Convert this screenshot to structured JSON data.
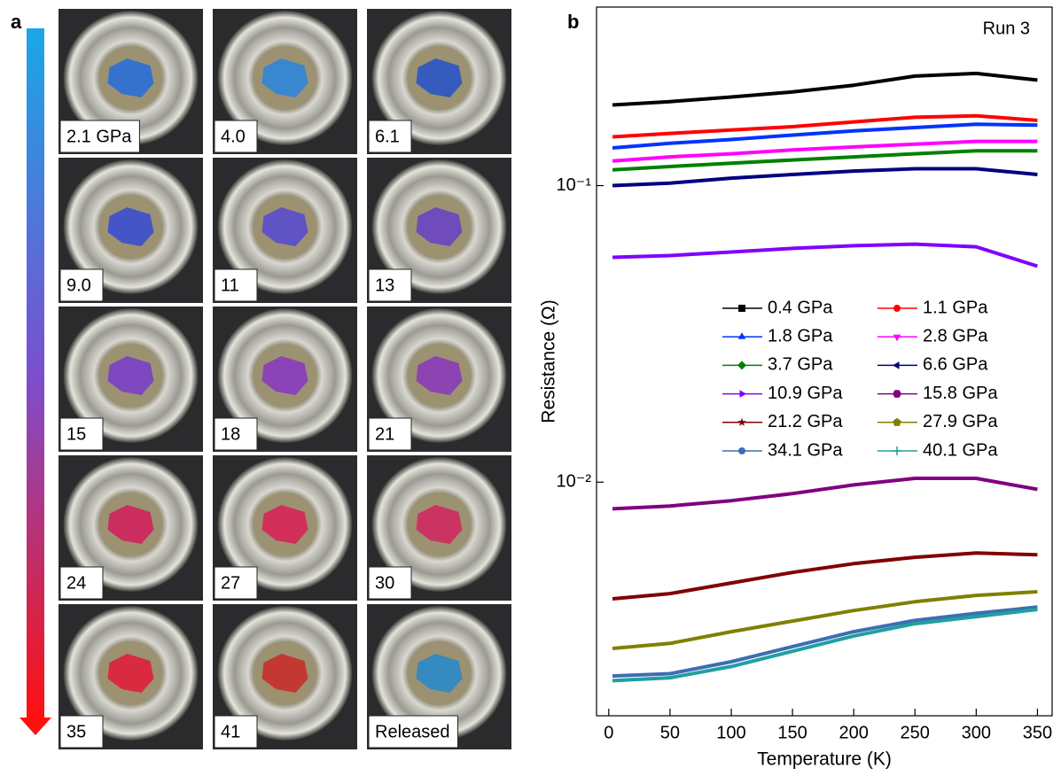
{
  "panel_a": {
    "label": "a",
    "images": [
      {
        "label": "2.1 GPa"
      },
      {
        "label": "4.0"
      },
      {
        "label": "6.1"
      },
      {
        "label": "9.0"
      },
      {
        "label": "11"
      },
      {
        "label": "13"
      },
      {
        "label": "15"
      },
      {
        "label": "18"
      },
      {
        "label": "21"
      },
      {
        "label": "24"
      },
      {
        "label": "27"
      },
      {
        "label": "30"
      },
      {
        "label": "35"
      },
      {
        "label": "41"
      },
      {
        "label": "Released"
      }
    ]
  },
  "chart_data": {
    "type": "line",
    "panel_label": "b",
    "annotation": "Run 3",
    "x_label": "Temperature (K)",
    "y_label": "Resistance (Ω)",
    "log_y": true,
    "xlim": [
      -10,
      362
    ],
    "xticks": [
      0,
      50,
      100,
      150,
      200,
      250,
      300,
      350
    ],
    "ylim": [
      0.00163,
      0.4
    ],
    "yticks": [
      {
        "value": 0.1,
        "label": "10⁻¹"
      },
      {
        "value": 0.01,
        "label": "10⁻²"
      }
    ],
    "x": [
      3,
      50,
      100,
      150,
      200,
      250,
      300,
      350
    ],
    "series": [
      {
        "name": "0.4 GPa",
        "color": "#000000",
        "marker": "square",
        "values": [
          0.187,
          0.192,
          0.199,
          0.207,
          0.218,
          0.234,
          0.239,
          0.227
        ]
      },
      {
        "name": "1.1 GPa",
        "color": "#ff0000",
        "marker": "circle",
        "values": [
          0.146,
          0.15,
          0.154,
          0.158,
          0.164,
          0.17,
          0.172,
          0.166
        ]
      },
      {
        "name": "1.8 GPa",
        "color": "#0033ff",
        "marker": "triangle-up",
        "values": [
          0.134,
          0.139,
          0.143,
          0.148,
          0.153,
          0.157,
          0.161,
          0.16
        ]
      },
      {
        "name": "2.8 GPa",
        "color": "#ff00ff",
        "marker": "triangle-down",
        "values": [
          0.121,
          0.125,
          0.128,
          0.132,
          0.135,
          0.138,
          0.141,
          0.141
        ]
      },
      {
        "name": "3.7 GPa",
        "color": "#008000",
        "marker": "diamond",
        "values": [
          0.113,
          0.116,
          0.119,
          0.122,
          0.125,
          0.128,
          0.131,
          0.131
        ]
      },
      {
        "name": "6.6 GPa",
        "color": "#000080",
        "marker": "triangle-left",
        "values": [
          0.1,
          0.102,
          0.106,
          0.109,
          0.112,
          0.114,
          0.114,
          0.109
        ]
      },
      {
        "name": "10.9 GPa",
        "color": "#8000ff",
        "marker": "triangle-right",
        "values": [
          0.0573,
          0.0581,
          0.0597,
          0.0614,
          0.0627,
          0.0635,
          0.0622,
          0.0535
        ]
      },
      {
        "name": "15.8 GPa",
        "color": "#800080",
        "marker": "hexagon",
        "values": [
          0.00813,
          0.00831,
          0.00866,
          0.00915,
          0.00979,
          0.0103,
          0.0103,
          0.00946
        ]
      },
      {
        "name": "21.2 GPa",
        "color": "#800000",
        "marker": "star",
        "values": [
          0.00404,
          0.00421,
          0.00457,
          0.00496,
          0.00531,
          0.00558,
          0.00577,
          0.00569
        ]
      },
      {
        "name": "27.9 GPa",
        "color": "#808000",
        "marker": "pentagon",
        "values": [
          0.00275,
          0.00286,
          0.00313,
          0.0034,
          0.00369,
          0.00395,
          0.00415,
          0.00427
        ]
      },
      {
        "name": "34.1 GPa",
        "color": "#3c6eb4",
        "marker": "circle",
        "values": [
          0.00222,
          0.00226,
          0.00248,
          0.00279,
          0.00313,
          0.00342,
          0.00361,
          0.00379
        ]
      },
      {
        "name": "40.1 GPa",
        "color": "#20a0a0",
        "marker": "plus",
        "values": [
          0.00214,
          0.00219,
          0.00239,
          0.00269,
          0.00303,
          0.00333,
          0.00352,
          0.00372
        ]
      }
    ]
  }
}
